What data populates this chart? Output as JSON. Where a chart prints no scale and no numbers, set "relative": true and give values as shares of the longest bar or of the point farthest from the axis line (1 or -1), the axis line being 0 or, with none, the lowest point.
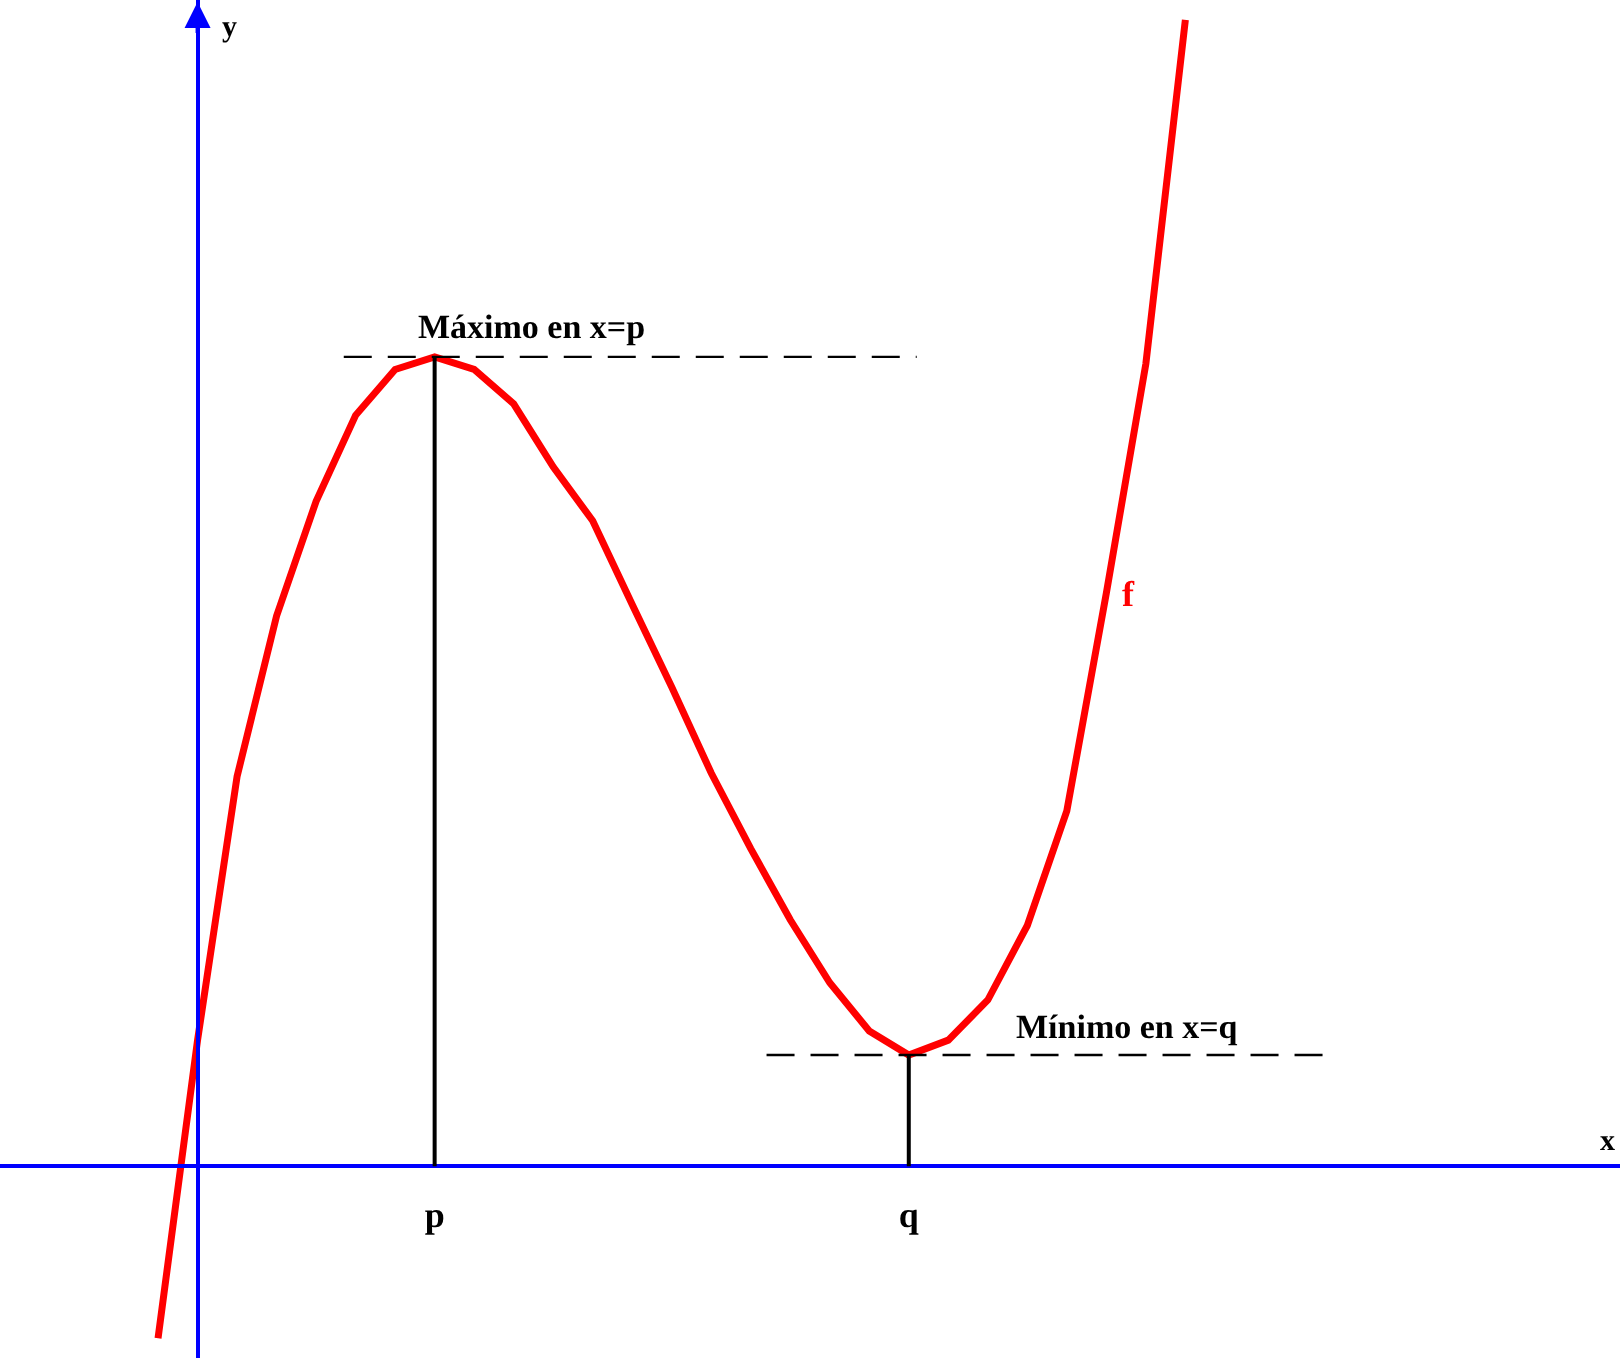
{
  "chart_data": {
    "type": "line",
    "relative": true,
    "ylabel": "y",
    "annotations": [
      "x"
    ],
    "categories": [
      null,
      null,
      null,
      null,
      null,
      null,
      null,
      "p",
      null,
      null,
      null,
      null,
      null,
      null,
      null,
      null,
      null,
      null,
      null,
      "q",
      null,
      null,
      null,
      null,
      null,
      null,
      null
    ],
    "series": [
      {
        "name": "f",
        "color": "#ff0000",
        "values": [
          -0.15,
          0.11,
          0.34,
          0.48,
          0.58,
          0.655,
          0.695,
          0.706,
          0.695,
          0.665,
          0.61,
          0.563,
          0.49,
          0.418,
          0.343,
          0.277,
          0.215,
          0.16,
          0.118,
          0.097,
          0.11,
          0.145,
          0.21,
          0.31,
          0.5,
          0.7,
          1.0
        ]
      }
    ],
    "ref_lines": [
      {
        "axis": "y",
        "value": 0.706,
        "label": "Máximo en x=p",
        "color": "#000000",
        "line_style": "dashed"
      },
      {
        "axis": "y",
        "value": 0.097,
        "label": "Mínimo en x=q",
        "color": "#000000",
        "line_style": "dashed"
      },
      {
        "axis": "x",
        "value": "p",
        "color": "#000000",
        "line_style": "solid"
      },
      {
        "axis": "x",
        "value": "q",
        "color": "#000000",
        "line_style": "solid"
      }
    ],
    "tick_labels": "x",
    "grid": false,
    "legend": false,
    "marker": "none",
    "line_style": "solid"
  }
}
